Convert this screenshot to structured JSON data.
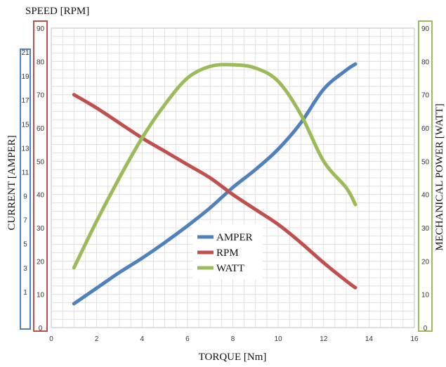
{
  "chart_data": {
    "type": "line",
    "x_axis": {
      "label": "TORQUE [Nm]",
      "range": [
        0,
        16
      ],
      "ticks": [
        "0",
        "2",
        "4",
        "6",
        "8",
        "10",
        "12",
        "14",
        "16"
      ]
    },
    "axes": {
      "speed": {
        "label": "SPEED [RPM]",
        "range": [
          0,
          90
        ],
        "ticks": [
          "0",
          "10",
          "20",
          "30",
          "40",
          "50",
          "60",
          "70",
          "80",
          "90"
        ],
        "color": "#c0504d"
      },
      "current": {
        "label": "CURRENT [AMPER]",
        "range": [
          -2,
          23
        ],
        "ticks": [
          "1",
          "3",
          "5",
          "7",
          "9",
          "11",
          "13",
          "15",
          "17",
          "19",
          "21"
        ],
        "color": "#4f81bd"
      },
      "power": {
        "label": "MECHANICAL POWER [WATT]",
        "range": [
          0,
          90
        ],
        "ticks": [
          "0",
          "10",
          "20",
          "30",
          "40",
          "50",
          "60",
          "70",
          "80",
          "90"
        ],
        "color": "#9bbb59"
      }
    },
    "grid": true,
    "legend_position": "center",
    "series": [
      {
        "name": "AMPER",
        "axis": "current",
        "color": "#4f81bd",
        "x": [
          1,
          2,
          3,
          4,
          5,
          6,
          7,
          8,
          9,
          10,
          11,
          12,
          13,
          13.4
        ],
        "y": [
          0.0,
          1.3,
          2.6,
          3.8,
          5.1,
          6.5,
          8.0,
          9.7,
          11.2,
          12.9,
          15.1,
          17.9,
          19.5,
          20.0
        ]
      },
      {
        "name": "RPM",
        "axis": "speed",
        "color": "#c0504d",
        "x": [
          1,
          2,
          3,
          4,
          5,
          6,
          7,
          8,
          9,
          10,
          11,
          12,
          13,
          13.4
        ],
        "y": [
          70,
          66,
          61.5,
          57,
          53,
          49,
          45,
          40,
          35.5,
          31,
          25.5,
          19.5,
          14,
          12
        ]
      },
      {
        "name": "WATT",
        "axis": "power",
        "color": "#9bbb59",
        "x": [
          1,
          2,
          3,
          4,
          5,
          6,
          7,
          8,
          9,
          10,
          11,
          12,
          13,
          13.4
        ],
        "y": [
          18,
          32,
          45,
          57,
          67,
          75,
          78.5,
          79,
          78,
          74,
          64,
          50,
          42,
          37
        ]
      }
    ]
  }
}
